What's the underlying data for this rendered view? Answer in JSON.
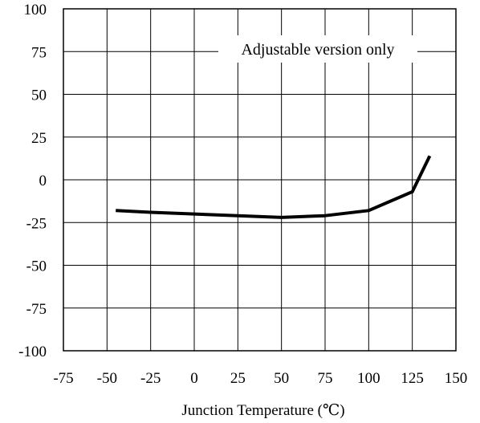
{
  "chart_data": {
    "type": "line",
    "title": "",
    "xlabel": "Junction Temperature (℃)",
    "ylabel": "",
    "xlim": [
      -75,
      150
    ],
    "ylim": [
      -100,
      100
    ],
    "x_ticks": [
      "-75",
      "-50",
      "-25",
      "0",
      "25",
      "50",
      "75",
      "100",
      "125",
      "150"
    ],
    "y_ticks": [
      "100",
      "75",
      "50",
      "25",
      "0",
      "-25",
      "-50",
      "-75",
      "-100"
    ],
    "grid": true,
    "annotation": "Adjustable version only",
    "series": [
      {
        "x": [
          -45,
          -25,
          0,
          25,
          50,
          75,
          100,
          125,
          135
        ],
        "y": [
          -18,
          -19,
          -20,
          -21,
          -22,
          -21,
          -18,
          -7,
          14
        ]
      }
    ]
  }
}
